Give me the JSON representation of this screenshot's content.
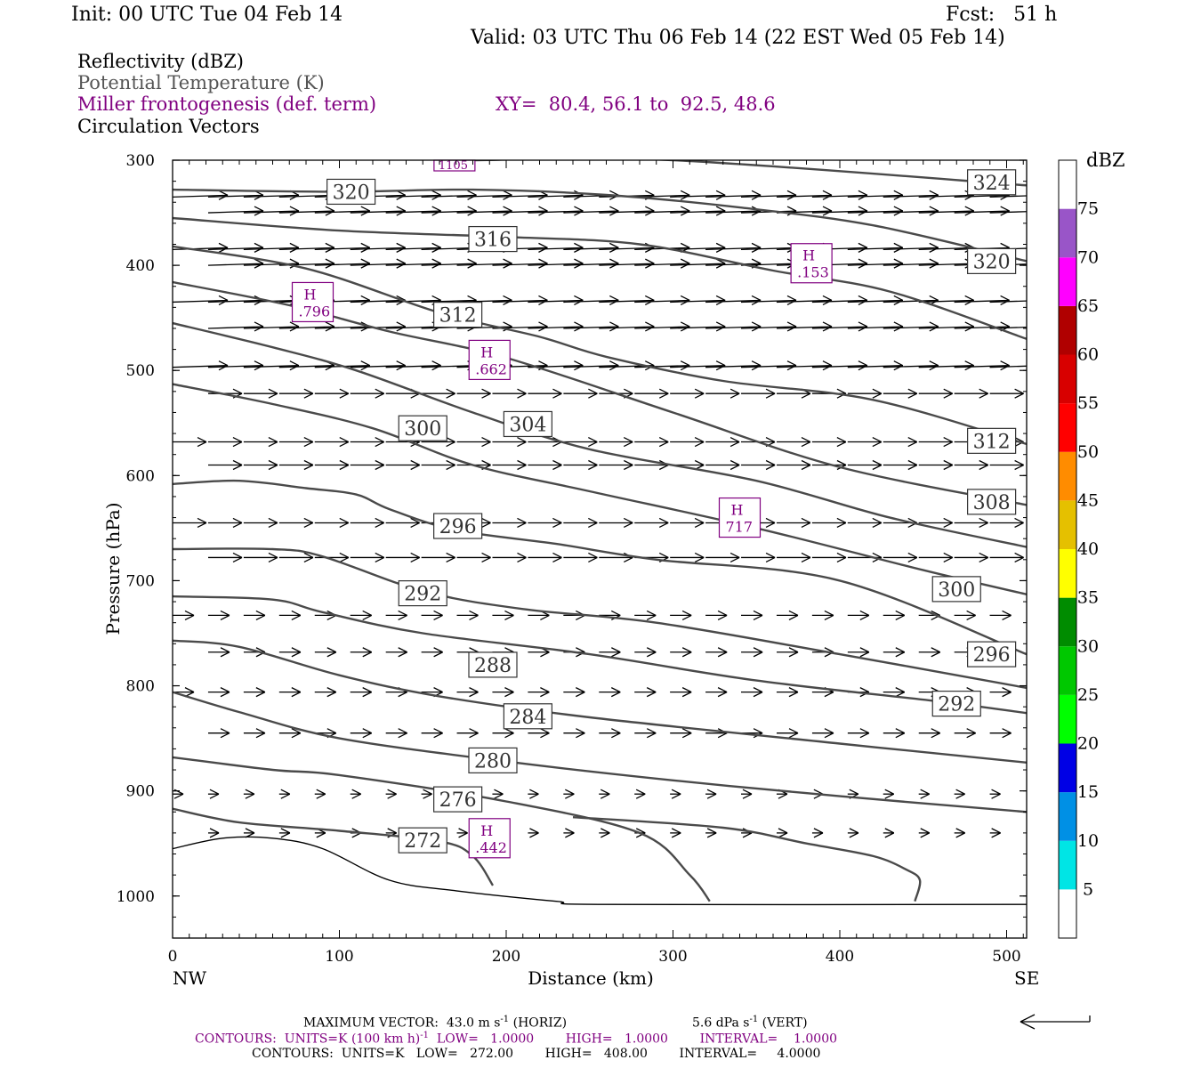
{
  "header": {
    "init": "Init: 00 UTC Tue 04 Feb 14",
    "fcst": "Fcst:   51 h",
    "valid": "Valid: 03 UTC Thu 06 Feb 14 (22 EST Wed 05 Feb 14)"
  },
  "legend_fields": {
    "reflectivity": "Reflectivity (dBZ)",
    "theta": "Potential Temperature (K)",
    "miller": "Miller frontogenesis (def. term)",
    "xy": "XY=  80.4, 56.1 to  92.5, 48.6",
    "circulation": "Circulation Vectors"
  },
  "colors": {
    "theta": "#4a4a4a",
    "miller": "#800080",
    "vector": "#000000"
  },
  "chart_data": {
    "type": "cross-section",
    "xlabel": "Distance (km)",
    "ylabel": "Pressure (hPa)",
    "xlim": [
      0,
      512
    ],
    "ylim": [
      300,
      1040
    ],
    "x_ticks": [
      0,
      100,
      200,
      300,
      400,
      500
    ],
    "y_ticks": [
      300,
      400,
      500,
      600,
      700,
      800,
      900,
      1000
    ],
    "x_end_labels": {
      "left": "NW",
      "right": "SE"
    },
    "theta_contours": [
      {
        "level": 324,
        "points": [
          [
            180,
            300
          ],
          [
            300,
            300
          ],
          [
            512,
            324
          ]
        ]
      },
      {
        "level": 320,
        "points": [
          [
            0,
            328
          ],
          [
            100,
            330
          ],
          [
            180,
            328
          ],
          [
            260,
            333
          ],
          [
            340,
            345
          ],
          [
            420,
            362
          ],
          [
            512,
            396
          ]
        ]
      },
      {
        "level": 316,
        "points": [
          [
            0,
            355
          ],
          [
            100,
            367
          ],
          [
            200,
            373
          ],
          [
            280,
            380
          ],
          [
            360,
            405
          ],
          [
            430,
            425
          ],
          [
            512,
            470
          ]
        ]
      },
      {
        "level": 312,
        "points": [
          [
            0,
            382
          ],
          [
            80,
            403
          ],
          [
            160,
            445
          ],
          [
            220,
            468
          ],
          [
            260,
            487
          ],
          [
            330,
            510
          ],
          [
            420,
            528
          ],
          [
            512,
            570
          ]
        ]
      },
      {
        "level": 308,
        "points": [
          [
            0,
            416
          ],
          [
            70,
            438
          ],
          [
            130,
            463
          ],
          [
            200,
            488
          ],
          [
            300,
            540
          ],
          [
            400,
            592
          ],
          [
            512,
            628
          ]
        ]
      },
      {
        "level": 304,
        "points": [
          [
            0,
            455
          ],
          [
            60,
            478
          ],
          [
            110,
            500
          ],
          [
            180,
            540
          ],
          [
            250,
            575
          ],
          [
            350,
            605
          ],
          [
            430,
            640
          ],
          [
            512,
            668
          ]
        ]
      },
      {
        "level": 300,
        "points": [
          [
            0,
            513
          ],
          [
            60,
            532
          ],
          [
            120,
            555
          ],
          [
            180,
            590
          ],
          [
            250,
            615
          ],
          [
            350,
            650
          ],
          [
            450,
            690
          ],
          [
            512,
            713
          ]
        ]
      },
      {
        "level": 296,
        "points": [
          [
            0,
            608
          ],
          [
            40,
            605
          ],
          [
            80,
            612
          ],
          [
            110,
            618
          ],
          [
            130,
            632
          ],
          [
            170,
            652
          ],
          [
            230,
            665
          ],
          [
            290,
            680
          ],
          [
            400,
            700
          ],
          [
            512,
            770
          ]
        ]
      },
      {
        "level": 292,
        "points": [
          [
            0,
            670
          ],
          [
            60,
            670
          ],
          [
            90,
            677
          ],
          [
            150,
            710
          ],
          [
            210,
            727
          ],
          [
            290,
            740
          ],
          [
            400,
            770
          ],
          [
            512,
            802
          ]
        ]
      },
      {
        "level": 288,
        "points": [
          [
            0,
            715
          ],
          [
            60,
            718
          ],
          [
            90,
            730
          ],
          [
            150,
            750
          ],
          [
            250,
            770
          ],
          [
            350,
            795
          ],
          [
            460,
            815
          ],
          [
            512,
            826
          ]
        ]
      },
      {
        "level": 284,
        "points": [
          [
            0,
            757
          ],
          [
            40,
            763
          ],
          [
            100,
            790
          ],
          [
            160,
            810
          ],
          [
            250,
            830
          ],
          [
            400,
            855
          ],
          [
            512,
            873
          ]
        ]
      },
      {
        "level": 280,
        "points": [
          [
            0,
            806
          ],
          [
            40,
            825
          ],
          [
            100,
            850
          ],
          [
            200,
            872
          ],
          [
            300,
            890
          ],
          [
            400,
            905
          ],
          [
            512,
            920
          ]
        ]
      },
      {
        "level": 276,
        "points": [
          [
            0,
            868
          ],
          [
            60,
            880
          ],
          [
            100,
            885
          ],
          [
            200,
            910
          ],
          [
            280,
            940
          ],
          [
            310,
            980
          ],
          [
            322,
            1005
          ]
        ]
      },
      {
        "level": 272,
        "points": [
          [
            0,
            917
          ],
          [
            40,
            930
          ],
          [
            100,
            938
          ],
          [
            160,
            948
          ],
          [
            180,
            962
          ],
          [
            192,
            990
          ]
        ]
      },
      {
        "level": 272,
        "points": [
          [
            240,
            925
          ],
          [
            330,
            935
          ],
          [
            380,
            950
          ],
          [
            420,
            962
          ],
          [
            440,
            975
          ],
          [
            448,
            985
          ],
          [
            445,
            1005
          ]
        ]
      }
    ],
    "theta_labels": [
      {
        "text": "320",
        "x": 107,
        "y": 330
      },
      {
        "text": "316",
        "x": 192,
        "y": 375
      },
      {
        "text": "312",
        "x": 171,
        "y": 447
      },
      {
        "text": "300",
        "x": 150,
        "y": 555
      },
      {
        "text": "304",
        "x": 213,
        "y": 551
      },
      {
        "text": "296",
        "x": 171,
        "y": 648
      },
      {
        "text": "292",
        "x": 150,
        "y": 712
      },
      {
        "text": "288",
        "x": 192,
        "y": 780
      },
      {
        "text": "284",
        "x": 213,
        "y": 829
      },
      {
        "text": "280",
        "x": 192,
        "y": 871
      },
      {
        "text": "276",
        "x": 171,
        "y": 908
      },
      {
        "text": "272",
        "x": 150,
        "y": 947
      },
      {
        "text": "324",
        "x": 491,
        "y": 321
      },
      {
        "text": "320",
        "x": 491,
        "y": 396
      },
      {
        "text": "312",
        "x": 491,
        "y": 567
      },
      {
        "text": "308",
        "x": 491,
        "y": 625
      },
      {
        "text": "300",
        "x": 470,
        "y": 708
      },
      {
        "text": "296",
        "x": 491,
        "y": 770
      },
      {
        "text": "292",
        "x": 470,
        "y": 817
      }
    ],
    "frontogenesis_highs": [
      {
        "label": "H",
        "value": ".796",
        "x": 84,
        "y": 435
      },
      {
        "label": "H",
        "value": ".662",
        "x": 190,
        "y": 490
      },
      {
        "label": "H",
        "value": ".153",
        "x": 383,
        "y": 398
      },
      {
        "label": "H",
        "value": "717",
        "x": 340,
        "y": 640
      },
      {
        "label": "H",
        "value": ".442",
        "x": 190,
        "y": 945
      },
      {
        "label": "",
        "value": "1105",
        "x": 169,
        "y": 300
      }
    ],
    "ground_line": [
      [
        0,
        955
      ],
      [
        30,
        945
      ],
      [
        60,
        945
      ],
      [
        90,
        955
      ],
      [
        130,
        985
      ],
      [
        170,
        995
      ],
      [
        230,
        1005
      ],
      [
        260,
        1008
      ],
      [
        512,
        1008
      ]
    ],
    "colorbar": {
      "title": "dBZ",
      "levels": [
        5,
        10,
        15,
        20,
        25,
        30,
        35,
        40,
        45,
        50,
        55,
        60,
        65,
        70,
        75
      ],
      "colors": [
        "#ffffff",
        "#00e5e5",
        "#0090e5",
        "#0000e5",
        "#00ff00",
        "#00c800",
        "#008c00",
        "#ffff00",
        "#e5c000",
        "#ff8c00",
        "#ff0000",
        "#d80000",
        "#b00000",
        "#ff00ff",
        "#9955c8",
        "#ffffff"
      ]
    }
  },
  "footer": {
    "max_vector": "MAXIMUM VECTOR:  43.0 m s",
    "horiz": " (HORIZ)",
    "vert_value": "5.6 dPa s",
    "vert": " (VERT)",
    "contours1_units": "CONTOURS:  UNITS=K (100 km h)",
    "contours1_rest": "  LOW=   1.0000        HIGH=   1.0000        INTERVAL=    1.0000",
    "contours2": "CONTOURS:  UNITS=K   LOW=   272.00        HIGH=   408.00        INTERVAL=     4.0000",
    "exp": "-1"
  }
}
